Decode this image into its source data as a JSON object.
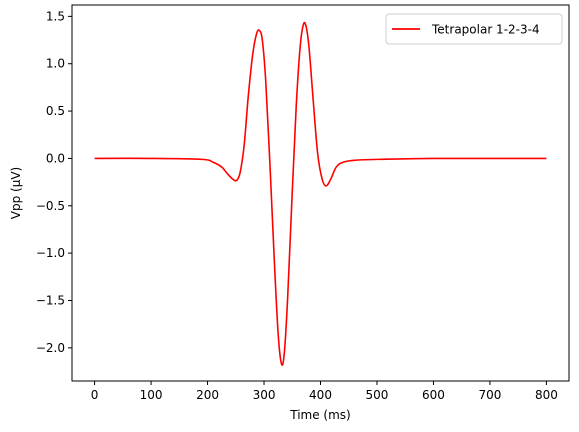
{
  "chart_data": {
    "type": "line",
    "title": "",
    "xlabel": "Time (ms)",
    "ylabel": "Vpp (μV)",
    "xlim": [
      -40,
      840
    ],
    "ylim": [
      -2.35,
      1.62
    ],
    "xticks": [
      0,
      100,
      200,
      300,
      400,
      500,
      600,
      700,
      800
    ],
    "yticks": [
      1.5,
      1.0,
      0.5,
      0.0,
      -0.5,
      -1.0,
      -1.5,
      -2.0
    ],
    "xtick_labels": [
      "0",
      "100",
      "200",
      "300",
      "400",
      "500",
      "600",
      "700",
      "800"
    ],
    "ytick_labels": [
      "1.5",
      "1.0",
      "0.5",
      "0.0",
      "−0.5",
      "−1.0",
      "−1.5",
      "−2.0"
    ],
    "grid": false,
    "legend_position": "top-right",
    "series": [
      {
        "name": "Tetrapolar 1-2-3-4",
        "color": "#ff0000",
        "x": [
          0,
          100,
          190,
          210,
          225,
          235,
          245,
          252,
          258,
          265,
          272,
          280,
          287,
          292,
          297,
          303,
          310,
          318,
          325,
          331,
          336,
          342,
          350,
          357,
          364,
          370,
          375,
          380,
          387,
          395,
          403,
          410,
          418,
          428,
          440,
          460,
          500,
          600,
          700,
          800
        ],
        "y": [
          0.0,
          0.0,
          -0.01,
          -0.04,
          -0.09,
          -0.16,
          -0.22,
          -0.23,
          -0.14,
          0.15,
          0.65,
          1.1,
          1.32,
          1.35,
          1.25,
          0.82,
          0.0,
          -1.05,
          -1.85,
          -2.17,
          -2.05,
          -1.45,
          -0.35,
          0.55,
          1.18,
          1.42,
          1.38,
          1.15,
          0.62,
          0.05,
          -0.22,
          -0.29,
          -0.22,
          -0.09,
          -0.04,
          -0.02,
          -0.01,
          0.0,
          0.0,
          0.0
        ]
      }
    ]
  }
}
